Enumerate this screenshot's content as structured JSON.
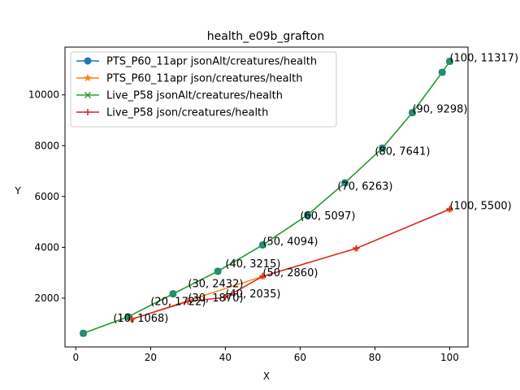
{
  "chart_data": {
    "type": "line",
    "title": "health_e09b_grafton",
    "xlabel": "X",
    "ylabel": "Y",
    "xlim": [
      -2.9,
      104.9
    ],
    "ylim": [
      81,
      11878
    ],
    "xticks": [
      0,
      20,
      40,
      60,
      80,
      100
    ],
    "yticks": [
      2000,
      4000,
      6000,
      8000,
      10000
    ],
    "legend_position": "top-left",
    "series": [
      {
        "name": "PTS_P60_11apr jsonAlt/creatures/health",
        "color": "#1f77b4",
        "marker": "circle",
        "x": [
          2,
          14,
          26,
          38,
          50,
          62,
          72,
          82,
          90,
          98,
          100
        ],
        "y": [
          617,
          1268,
          2170,
          3060,
          4094,
          5277,
          6540,
          7906,
          9298,
          10887,
          11317
        ]
      },
      {
        "name": "PTS_P60_11apr json/creatures/health",
        "color": "#ff7f0e",
        "marker": "star",
        "x": [
          15,
          50,
          75,
          100
        ],
        "y": [
          1178,
          2860,
          3958,
          5500
        ]
      },
      {
        "name": "Live_P58 jsonAlt/creatures/health",
        "color": "#2ca02c",
        "marker": "x",
        "x": [
          2,
          14,
          26,
          38,
          50,
          62,
          72,
          82,
          90,
          98,
          100
        ],
        "y": [
          617,
          1268,
          2170,
          3060,
          4094,
          5277,
          6540,
          7906,
          9298,
          10887,
          11317
        ]
      },
      {
        "name": "Live_P58 json/creatures/health",
        "color": "#d62728",
        "marker": "plus",
        "x": [
          15,
          30,
          40,
          50,
          75,
          100
        ],
        "y": [
          1178,
          1870,
          2035,
          2860,
          3958,
          5500
        ]
      }
    ],
    "annotations": [
      {
        "text": "(10, 1068)",
        "x": 10,
        "y": 1068
      },
      {
        "text": "(20, 1722)",
        "x": 20,
        "y": 1722
      },
      {
        "text": "(30, 1870)",
        "x": 30,
        "y": 1870
      },
      {
        "text": "(30, 2432)",
        "x": 30,
        "y": 2432
      },
      {
        "text": "(40, 2035)",
        "x": 40,
        "y": 2035
      },
      {
        "text": "(40, 3215)",
        "x": 40,
        "y": 3215
      },
      {
        "text": "(50, 2860)",
        "x": 50,
        "y": 2860
      },
      {
        "text": "(50, 4094)",
        "x": 50,
        "y": 4094
      },
      {
        "text": "(60, 5097)",
        "x": 60,
        "y": 5097
      },
      {
        "text": "(70, 6263)",
        "x": 70,
        "y": 6263
      },
      {
        "text": "(80, 7641)",
        "x": 80,
        "y": 7641
      },
      {
        "text": "(90, 9298)",
        "x": 90,
        "y": 9298
      },
      {
        "text": "(100, 11317)",
        "x": 100,
        "y": 11317
      },
      {
        "text": "(100, 5500)",
        "x": 100,
        "y": 5500
      }
    ]
  }
}
